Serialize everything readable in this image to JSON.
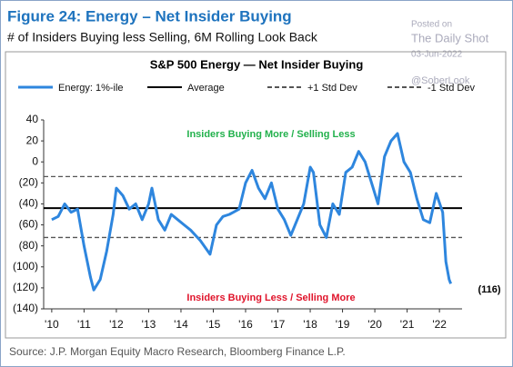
{
  "chart_data": {
    "type": "line",
    "title": "Figure 24: Energy – Net Insider Buying",
    "subtitle": "# of Insiders Buying less Selling, 6M Rolling Look Back",
    "chart_title": "S&P 500 Energy — Net Insider Buying",
    "source": "Source: J.P. Morgan Equity Macro Research, Bloomberg Finance L.P.",
    "x": [
      2010.0,
      2010.2,
      2010.4,
      2010.6,
      2010.8,
      2011.0,
      2011.2,
      2011.3,
      2011.5,
      2011.7,
      2011.9,
      2012.0,
      2012.2,
      2012.4,
      2012.6,
      2012.8,
      2013.0,
      2013.1,
      2013.3,
      2013.5,
      2013.7,
      2013.9,
      2014.1,
      2014.3,
      2014.6,
      2014.9,
      2015.1,
      2015.3,
      2015.5,
      2015.8,
      2016.0,
      2016.2,
      2016.4,
      2016.6,
      2016.8,
      2017.0,
      2017.2,
      2017.4,
      2017.6,
      2017.8,
      2018.0,
      2018.1,
      2018.3,
      2018.5,
      2018.7,
      2018.9,
      2019.1,
      2019.3,
      2019.5,
      2019.7,
      2019.9,
      2020.1,
      2020.3,
      2020.5,
      2020.7,
      2020.9,
      2021.1,
      2021.3,
      2021.5,
      2021.7,
      2021.9,
      2022.1,
      2022.2,
      2022.3,
      2022.35
    ],
    "series": [
      {
        "name": "Energy: 1%-ile",
        "color": "#2e86de",
        "values": [
          -55,
          -52,
          -40,
          -48,
          -45,
          -80,
          -110,
          -122,
          -112,
          -85,
          -50,
          -25,
          -32,
          -45,
          -40,
          -55,
          -40,
          -25,
          -55,
          -65,
          -50,
          -55,
          -60,
          -65,
          -75,
          -88,
          -60,
          -52,
          -50,
          -45,
          -20,
          -8,
          -25,
          -35,
          -20,
          -45,
          -55,
          -70,
          -55,
          -40,
          -5,
          -10,
          -60,
          -72,
          -40,
          -50,
          -10,
          -5,
          10,
          0,
          -20,
          -40,
          5,
          20,
          27,
          0,
          -10,
          -35,
          -55,
          -58,
          -30,
          -48,
          -95,
          -112,
          -116
        ]
      }
    ],
    "reference_lines": [
      {
        "name": "Average",
        "value": -44,
        "style": "solid",
        "color": "#000000"
      },
      {
        "name": "+1 Std Dev",
        "value": -14,
        "style": "dashed",
        "color": "#555555"
      },
      {
        "name": "-1 Std Dev",
        "value": -72,
        "style": "dashed",
        "color": "#555555"
      }
    ],
    "annotations": [
      {
        "text": "Insiders Buying More / Selling Less",
        "color": "#22b14c"
      },
      {
        "text": "Insiders Buying Less / Selling More",
        "color": "#e0142b"
      },
      {
        "text": "(116)",
        "color": "#000000"
      }
    ],
    "xlim": [
      2009.75,
      2022.7
    ],
    "xticks": [
      {
        "value": 2010,
        "label": "'10"
      },
      {
        "value": 2011,
        "label": "'11"
      },
      {
        "value": 2012,
        "label": "'12"
      },
      {
        "value": 2013,
        "label": "'13"
      },
      {
        "value": 2014,
        "label": "'14"
      },
      {
        "value": 2015,
        "label": "'15"
      },
      {
        "value": 2016,
        "label": "'16"
      },
      {
        "value": 2017,
        "label": "'17"
      },
      {
        "value": 2018,
        "label": "'18"
      },
      {
        "value": 2019,
        "label": "'19"
      },
      {
        "value": 2020,
        "label": "'20"
      },
      {
        "value": 2021,
        "label": "'21"
      },
      {
        "value": 2022,
        "label": "'22"
      }
    ],
    "ylim": [
      -140,
      40
    ],
    "yticks": [
      40,
      20,
      0,
      {
        "value": -20,
        "label": "(20)"
      },
      {
        "value": -40,
        "label": "(40)"
      },
      {
        "value": -60,
        "label": "(60)"
      },
      {
        "value": -80,
        "label": "(80)"
      },
      {
        "value": -100,
        "label": "(100)"
      },
      {
        "value": -120,
        "label": "(120)"
      },
      {
        "value": -140,
        "label": "(140)"
      }
    ]
  },
  "watermark": {
    "posted": "Posted on",
    "site": "The Daily Shot",
    "date": "03-Jun-2022",
    "handle": "@SoberLook"
  }
}
